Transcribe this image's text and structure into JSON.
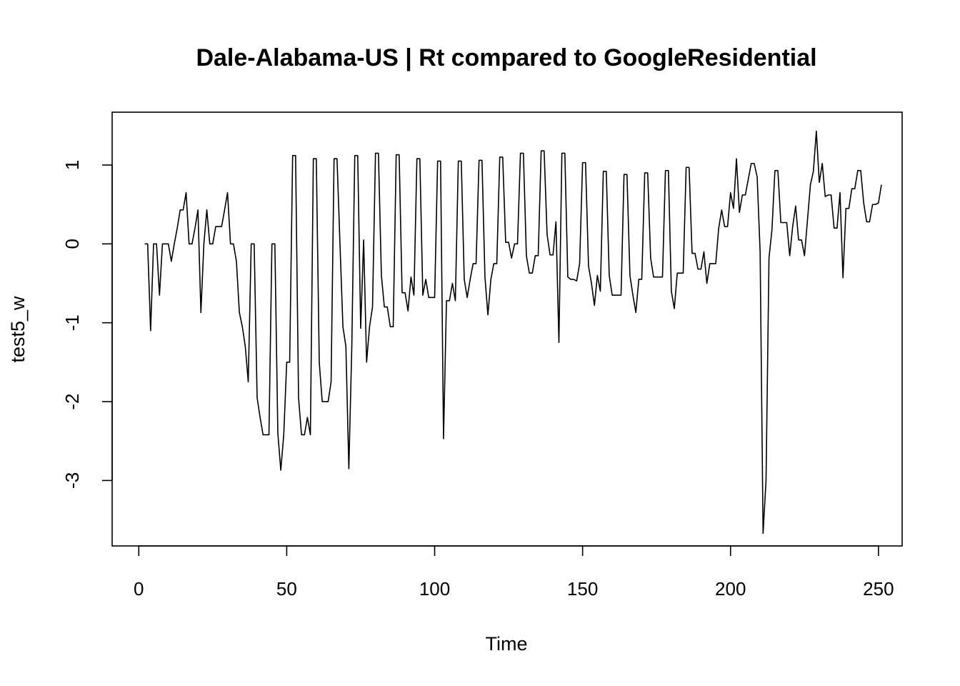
{
  "chart_data": {
    "type": "line",
    "title": "Dale-Alabama-US | Rt compared to GoogleResidential",
    "xlabel": "Time",
    "ylabel": "test5_w",
    "xlim": [
      -9,
      258
    ],
    "ylim": [
      -3.83,
      1.67
    ],
    "x_ticks": [
      0,
      50,
      100,
      150,
      200,
      250
    ],
    "x_tick_labels": [
      "0",
      "50",
      "100",
      "150",
      "200",
      "250"
    ],
    "y_ticks": [
      -3,
      -2,
      -1,
      0,
      1
    ],
    "y_tick_labels": [
      "-3",
      "-2",
      "-1",
      "0",
      "1"
    ],
    "grid": false,
    "legend": "none",
    "line_color": "#000000",
    "x_start": 2,
    "series": [
      {
        "values": [
          0.0,
          0.0,
          -1.1,
          0.0,
          0.0,
          -0.65,
          0.0,
          0.0,
          0.0,
          -0.22,
          0.0,
          0.2,
          0.43,
          0.43,
          0.65,
          0.0,
          0.0,
          0.2,
          0.43,
          -0.87,
          0.0,
          0.43,
          0.0,
          0.0,
          0.22,
          0.22,
          0.22,
          0.43,
          0.65,
          0.0,
          0.0,
          -0.22,
          -0.87,
          -1.05,
          -1.3,
          -1.75,
          0.0,
          0.0,
          -1.95,
          -2.2,
          -2.42,
          -2.42,
          -2.42,
          0.0,
          0.0,
          -2.4,
          -2.87,
          -2.42,
          -1.5,
          -1.5,
          1.12,
          1.12,
          -1.95,
          -2.42,
          -2.42,
          -2.2,
          -2.42,
          1.08,
          1.08,
          -1.5,
          -2.0,
          -2.0,
          -2.0,
          -1.75,
          1.08,
          1.08,
          0.0,
          -1.05,
          -1.3,
          -2.85,
          -1.3,
          1.12,
          1.12,
          -1.07,
          0.05,
          -1.5,
          -1.05,
          -0.8,
          1.15,
          1.15,
          -0.4,
          -0.8,
          -0.8,
          -1.05,
          -1.05,
          1.13,
          1.13,
          -0.62,
          -0.62,
          -0.85,
          -0.42,
          -0.65,
          1.08,
          1.08,
          -0.65,
          -0.45,
          -0.68,
          -0.68,
          -0.68,
          1.05,
          1.05,
          -2.47,
          -0.72,
          -0.72,
          -0.5,
          -0.72,
          1.05,
          1.05,
          -0.45,
          -0.68,
          -0.45,
          -0.25,
          -0.25,
          1.06,
          1.06,
          -0.42,
          -0.9,
          -0.45,
          -0.25,
          -0.25,
          1.1,
          1.1,
          0.02,
          0.02,
          -0.18,
          0.0,
          0.0,
          1.15,
          1.15,
          -0.15,
          -0.37,
          -0.37,
          -0.15,
          -0.15,
          1.18,
          1.18,
          0.12,
          -0.14,
          -0.14,
          0.28,
          -1.25,
          1.15,
          1.15,
          -0.42,
          -0.45,
          -0.45,
          -0.47,
          -0.25,
          1.03,
          1.03,
          -0.28,
          -0.5,
          -0.78,
          -0.4,
          -0.6,
          0.92,
          0.92,
          -0.4,
          -0.65,
          -0.65,
          -0.65,
          -0.65,
          0.88,
          0.88,
          -0.4,
          -0.65,
          -0.87,
          -0.45,
          -0.45,
          0.9,
          0.9,
          -0.18,
          -0.42,
          -0.42,
          -0.42,
          -0.42,
          0.93,
          0.93,
          -0.6,
          -0.82,
          -0.37,
          -0.37,
          -0.37,
          0.97,
          0.97,
          -0.12,
          -0.12,
          -0.32,
          -0.32,
          -0.1,
          -0.5,
          -0.25,
          -0.25,
          -0.25,
          0.2,
          0.43,
          0.22,
          0.22,
          0.65,
          0.45,
          1.08,
          0.4,
          0.62,
          0.62,
          0.82,
          1.02,
          1.02,
          0.85,
          -0.1,
          -3.67,
          -3.0,
          -0.18,
          0.18,
          0.93,
          0.93,
          0.27,
          0.27,
          0.27,
          -0.15,
          0.22,
          0.48,
          0.05,
          0.05,
          -0.15,
          0.3,
          0.75,
          0.92,
          1.43,
          0.78,
          1.02,
          0.6,
          0.62,
          0.62,
          0.2,
          0.2,
          0.65,
          -0.43,
          0.45,
          0.45,
          0.7,
          0.7,
          0.93,
          0.93,
          0.52,
          0.28,
          0.28,
          0.5,
          0.5,
          0.52,
          0.75
        ]
      }
    ]
  }
}
